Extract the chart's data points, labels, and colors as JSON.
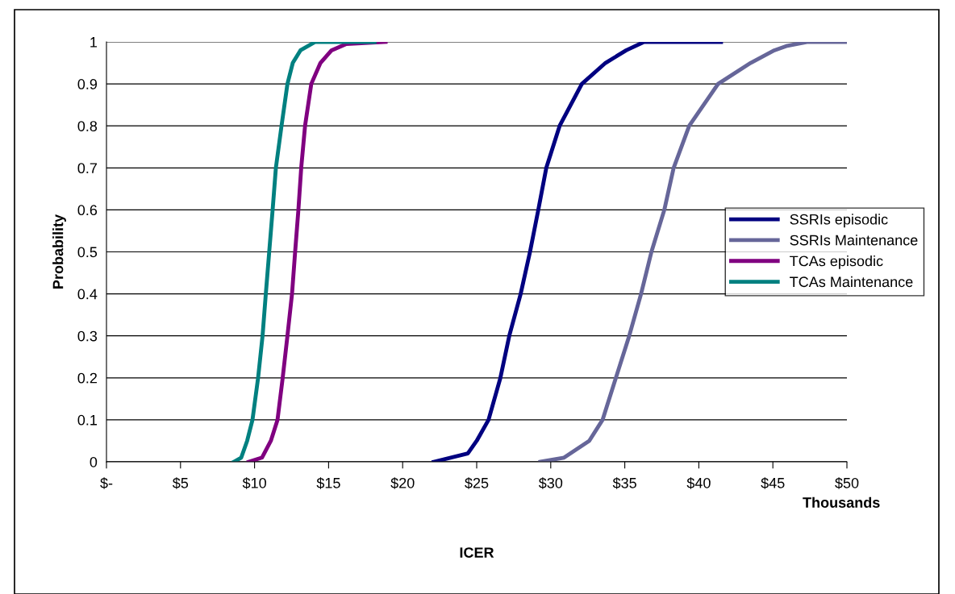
{
  "chart_data": {
    "type": "line",
    "xlabel": "ICER",
    "ylabel": "Probability",
    "annotations": [
      "Thousands"
    ],
    "series": [
      {
        "name": "SSRIs episodic",
        "color": "#000080",
        "x": [
          22.1,
          24.4,
          25.0,
          25.8,
          26.6,
          27.2,
          27.97,
          28.6,
          29.16,
          29.7,
          30.6,
          32.1,
          33.7,
          35.1,
          36.3,
          41.5
        ],
        "values": [
          0,
          0.02,
          0.05,
          0.1,
          0.2,
          0.3,
          0.4,
          0.5,
          0.6,
          0.7,
          0.8,
          0.9,
          0.95,
          0.98,
          1,
          1
        ]
      },
      {
        "name": "SSRIs Maintenance",
        "color": "#666699",
        "x": [
          29.3,
          30.9,
          32.6,
          33.5,
          34.4,
          35.3,
          36.1,
          36.8,
          37.67,
          38.3,
          39.35,
          41.3,
          43.5,
          45.1,
          45.9,
          47.3,
          49.9
        ],
        "values": [
          0,
          0.01,
          0.05,
          0.1,
          0.2,
          0.3,
          0.4,
          0.5,
          0.6,
          0.7,
          0.8,
          0.9,
          0.95,
          0.98,
          0.99,
          1,
          1
        ]
      },
      {
        "name": "TCAs episodic",
        "color": "#800080",
        "x": [
          9.6,
          10.5,
          11.1,
          11.55,
          11.9,
          12.22,
          12.53,
          12.74,
          12.96,
          13.15,
          13.41,
          13.83,
          14.45,
          15.2,
          16.2,
          18.85
        ],
        "values": [
          0,
          0.01,
          0.05,
          0.1,
          0.2,
          0.3,
          0.4,
          0.5,
          0.6,
          0.7,
          0.8,
          0.9,
          0.95,
          0.98,
          0.995,
          1
        ]
      },
      {
        "name": "TCAs Maintenance",
        "color": "#008080",
        "x": [
          8.6,
          9.1,
          9.5,
          9.86,
          10.24,
          10.54,
          10.76,
          10.99,
          11.22,
          11.44,
          11.82,
          12.22,
          12.58,
          13.1,
          14.1,
          18.1
        ],
        "values": [
          0,
          0.01,
          0.05,
          0.1,
          0.2,
          0.3,
          0.4,
          0.5,
          0.6,
          0.7,
          0.8,
          0.9,
          0.95,
          0.98,
          1,
          1
        ]
      }
    ],
    "xlim": [
      0,
      50
    ],
    "xticks": [
      {
        "value": 0,
        "label": "$-"
      },
      {
        "value": 5,
        "label": "$5"
      },
      {
        "value": 10,
        "label": "$10"
      },
      {
        "value": 15,
        "label": "$15"
      },
      {
        "value": 20,
        "label": "$20"
      },
      {
        "value": 25,
        "label": "$25"
      },
      {
        "value": 30,
        "label": "$30"
      },
      {
        "value": 35,
        "label": "$35"
      },
      {
        "value": 40,
        "label": "$40"
      },
      {
        "value": 45,
        "label": "$45"
      },
      {
        "value": 50,
        "label": "$50"
      }
    ],
    "ylim": [
      0,
      1
    ],
    "yticks": [
      0,
      0.1,
      0.2,
      0.3,
      0.4,
      0.5,
      0.6,
      0.7,
      0.8,
      0.9,
      1
    ],
    "grid": "y",
    "legend": "right",
    "marker": "none",
    "line_style": "solid"
  }
}
